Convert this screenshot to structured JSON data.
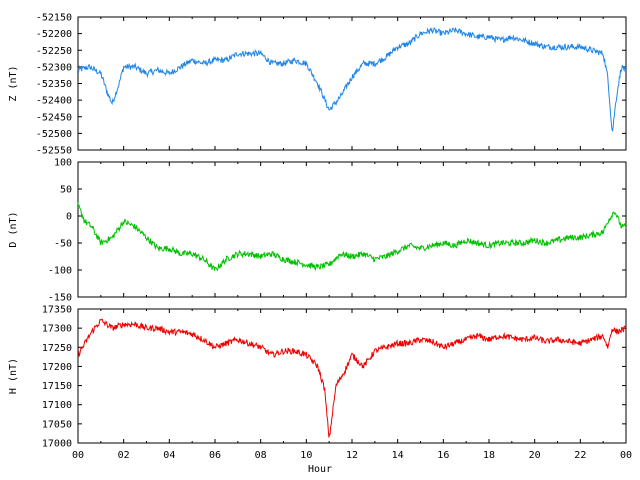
{
  "chart_data": [
    {
      "type": "line",
      "ylabel": "Z (nT)",
      "color": "#1f86e8",
      "ylim": [
        -52550,
        -52150
      ],
      "yticks": [
        -52150,
        -52200,
        -52250,
        -52300,
        -52350,
        -52400,
        -52450,
        -52500,
        -52550
      ],
      "x": [
        0,
        0.5,
        1.0,
        1.3,
        1.5,
        1.8,
        2.0,
        2.5,
        3.0,
        3.5,
        4.0,
        4.5,
        5.0,
        5.5,
        6.0,
        6.5,
        7.0,
        7.5,
        8.0,
        8.5,
        9.0,
        9.5,
        10.0,
        10.5,
        11.0,
        11.5,
        12.0,
        12.5,
        13.0,
        13.5,
        14.0,
        14.5,
        15.0,
        15.5,
        16.0,
        16.5,
        17.0,
        17.5,
        18.0,
        18.5,
        19.0,
        19.5,
        20.0,
        20.5,
        21.0,
        21.5,
        22.0,
        22.5,
        23.0,
        23.2,
        23.4,
        23.6,
        23.8,
        24.0
      ],
      "values": [
        -52310,
        -52300,
        -52320,
        -52380,
        -52410,
        -52350,
        -52300,
        -52300,
        -52320,
        -52310,
        -52320,
        -52300,
        -52280,
        -52290,
        -52280,
        -52280,
        -52260,
        -52260,
        -52260,
        -52290,
        -52290,
        -52280,
        -52290,
        -52350,
        -52430,
        -52390,
        -52330,
        -52290,
        -52290,
        -52270,
        -52240,
        -52230,
        -52200,
        -52190,
        -52200,
        -52190,
        -52200,
        -52210,
        -52210,
        -52220,
        -52210,
        -52220,
        -52230,
        -52240,
        -52240,
        -52240,
        -52240,
        -52250,
        -52260,
        -52330,
        -52500,
        -52380,
        -52300,
        -52310
      ]
    },
    {
      "type": "line",
      "ylabel": "D (nT)",
      "color": "#00c000",
      "ylim": [
        -150,
        100
      ],
      "yticks": [
        100,
        50,
        0,
        -50,
        -100,
        -150
      ],
      "x": [
        0,
        0.3,
        0.6,
        1.0,
        1.5,
        2.0,
        2.5,
        3.0,
        3.5,
        4.0,
        4.5,
        5.0,
        5.5,
        6.0,
        6.5,
        7.0,
        7.5,
        8.0,
        8.5,
        9.0,
        9.5,
        10.0,
        10.5,
        11.0,
        11.5,
        12.0,
        12.5,
        13.0,
        13.5,
        14.0,
        14.5,
        15.0,
        15.5,
        16.0,
        16.5,
        17.0,
        17.5,
        18.0,
        18.5,
        19.0,
        19.5,
        20.0,
        20.5,
        21.0,
        21.5,
        22.0,
        22.5,
        23.0,
        23.2,
        23.5,
        23.8,
        24.0
      ],
      "values": [
        20,
        -10,
        -20,
        -50,
        -40,
        -10,
        -20,
        -40,
        -60,
        -60,
        -70,
        -70,
        -80,
        -100,
        -80,
        -70,
        -70,
        -75,
        -70,
        -80,
        -85,
        -90,
        -95,
        -90,
        -70,
        -75,
        -70,
        -80,
        -75,
        -65,
        -55,
        -60,
        -55,
        -50,
        -55,
        -45,
        -50,
        -55,
        -50,
        -50,
        -50,
        -45,
        -50,
        -45,
        -40,
        -40,
        -35,
        -30,
        -10,
        10,
        -20,
        -20
      ]
    },
    {
      "type": "line",
      "ylabel": "H (nT)",
      "color": "#ee0000",
      "ylim": [
        17000,
        17350
      ],
      "yticks": [
        17350,
        17300,
        17250,
        17200,
        17150,
        17100,
        17050,
        17000
      ],
      "x": [
        0,
        0.3,
        0.6,
        1.0,
        1.5,
        2.0,
        2.5,
        3.0,
        3.5,
        4.0,
        4.5,
        5.0,
        5.5,
        6.0,
        6.5,
        7.0,
        7.5,
        8.0,
        8.5,
        9.0,
        9.5,
        10.0,
        10.5,
        10.8,
        11.0,
        11.3,
        11.7,
        12.0,
        12.5,
        13.0,
        13.5,
        14.0,
        14.5,
        15.0,
        15.5,
        16.0,
        16.5,
        17.0,
        17.5,
        18.0,
        18.5,
        19.0,
        19.5,
        20.0,
        20.5,
        21.0,
        21.5,
        22.0,
        22.5,
        23.0,
        23.2,
        23.4,
        23.6,
        24.0
      ],
      "values": [
        17230,
        17260,
        17290,
        17320,
        17300,
        17310,
        17310,
        17300,
        17300,
        17290,
        17290,
        17285,
        17270,
        17250,
        17260,
        17270,
        17260,
        17250,
        17230,
        17240,
        17240,
        17230,
        17200,
        17140,
        17010,
        17150,
        17190,
        17230,
        17200,
        17240,
        17250,
        17260,
        17260,
        17270,
        17265,
        17250,
        17260,
        17270,
        17280,
        17270,
        17280,
        17275,
        17270,
        17275,
        17265,
        17270,
        17265,
        17260,
        17270,
        17280,
        17250,
        17300,
        17290,
        17300
      ]
    }
  ],
  "xaxis": {
    "label": "Hour",
    "ticks": [
      "00",
      "02",
      "04",
      "06",
      "08",
      "10",
      "12",
      "14",
      "16",
      "18",
      "20",
      "22",
      "00"
    ],
    "range": [
      0,
      24
    ]
  }
}
